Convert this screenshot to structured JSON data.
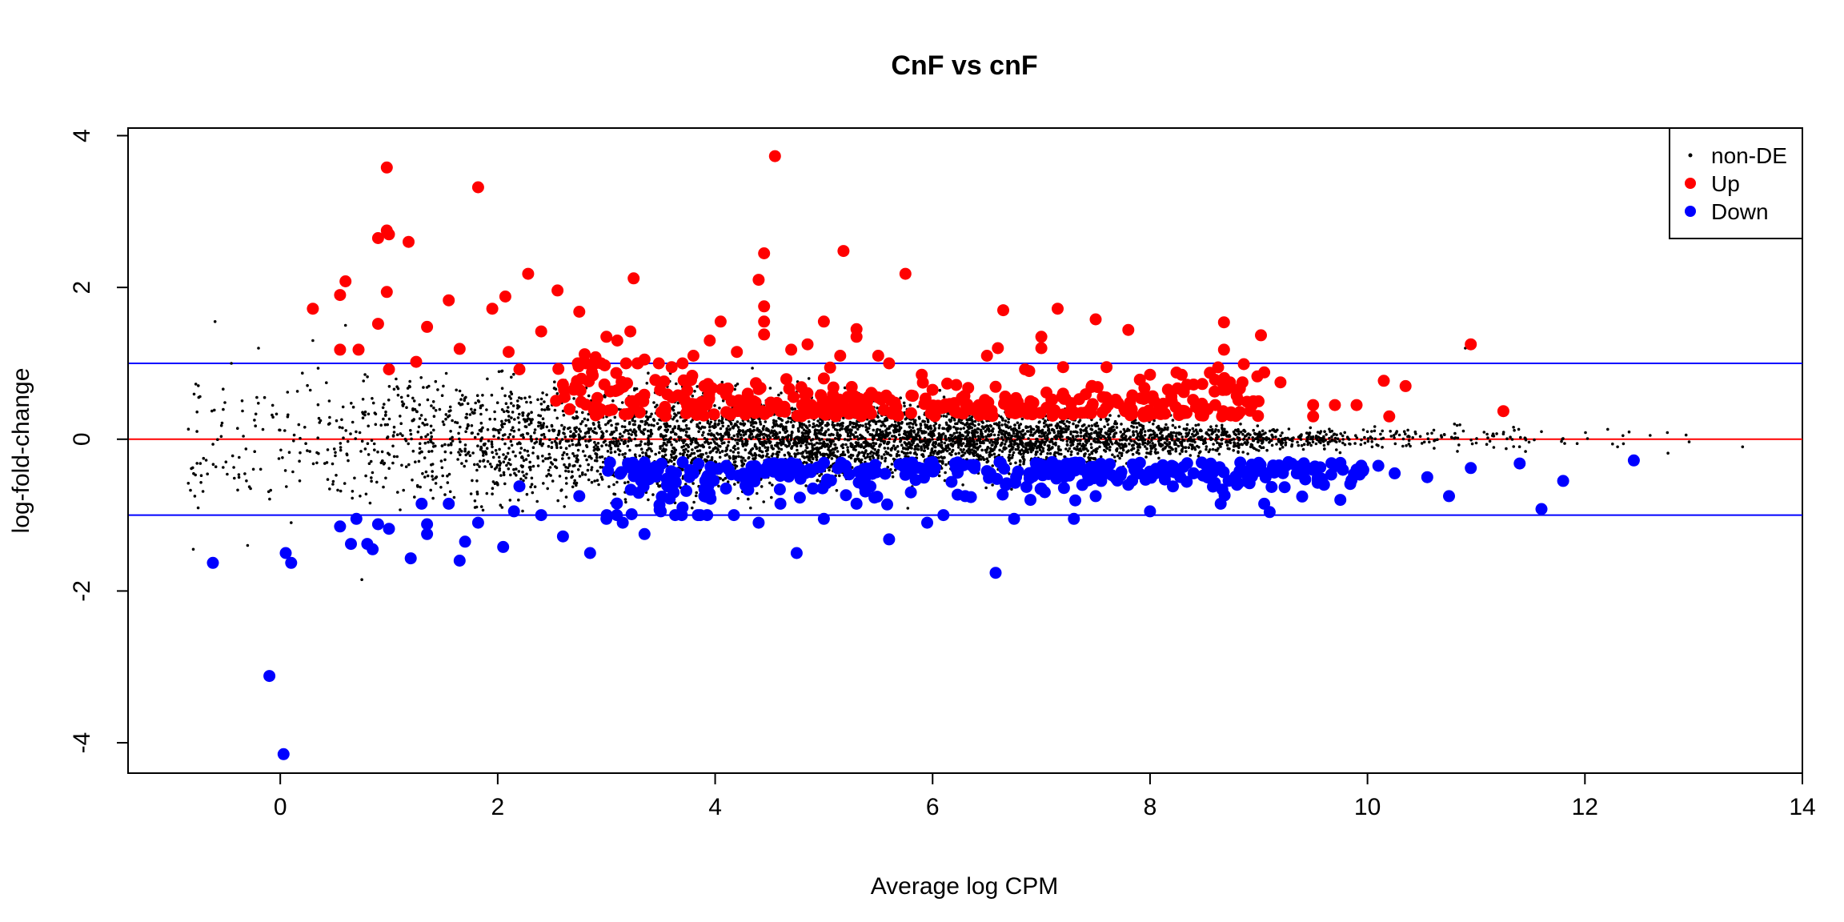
{
  "chart_data": {
    "type": "scatter",
    "title": "CnF vs cnF",
    "xlabel": "Average log CPM",
    "ylabel": "log-fold-change",
    "xlim": [
      -1.4,
      14.0
    ],
    "ylim": [
      -4.4,
      4.1
    ],
    "x_ticks": [
      0,
      2,
      4,
      6,
      8,
      10,
      12,
      14
    ],
    "y_ticks": [
      -4,
      -2,
      0,
      2,
      4
    ],
    "grid": false,
    "legend_position": "top-right",
    "reference_lines": [
      {
        "axis": "y",
        "value": 0,
        "color": "#ff0000"
      },
      {
        "axis": "y",
        "value": 1,
        "color": "#0000ff"
      },
      {
        "axis": "y",
        "value": -1,
        "color": "#0000ff"
      }
    ],
    "series": [
      {
        "name": "non-DE",
        "color": "#000000",
        "marker": "small-dot",
        "n_points": 5200,
        "points": [
          [
            -0.75,
            0.55
          ],
          [
            -0.6,
            1.55
          ],
          [
            -0.45,
            1.0
          ],
          [
            -0.2,
            1.2
          ],
          [
            -0.8,
            -1.45
          ],
          [
            -0.3,
            -1.4
          ],
          [
            0.1,
            -1.1
          ],
          [
            0.75,
            -1.85
          ],
          [
            1.2,
            2.6
          ],
          [
            0.6,
            1.5
          ],
          [
            0.3,
            1.3
          ],
          [
            10.9,
            1.2
          ],
          [
            12.6,
            0.05
          ],
          [
            13.45,
            -0.1
          ],
          [
            12.3,
            -0.1
          ],
          [
            11.6,
            0.1
          ],
          [
            10.8,
            0.2
          ],
          [
            2.0,
            -0.6
          ],
          [
            3.0,
            -0.35
          ],
          [
            1.5,
            0.7
          ],
          [
            2.5,
            0.45
          ],
          [
            4.0,
            0.25
          ],
          [
            5.0,
            -0.2
          ],
          [
            6.0,
            0.1
          ],
          [
            7.0,
            -0.1
          ],
          [
            8.0,
            0.05
          ],
          [
            9.0,
            -0.15
          ],
          [
            10.0,
            0.1
          ],
          [
            11.0,
            -0.05
          ],
          [
            -0.5,
            -0.3
          ]
        ]
      },
      {
        "name": "Up",
        "color": "#ff0000",
        "marker": "filled-circle",
        "points": [
          [
            0.3,
            1.72
          ],
          [
            0.55,
            1.9
          ],
          [
            0.6,
            2.08
          ],
          [
            0.55,
            1.18
          ],
          [
            0.72,
            1.18
          ],
          [
            0.9,
            2.65
          ],
          [
            0.98,
            2.75
          ],
          [
            1.0,
            2.7
          ],
          [
            0.98,
            3.58
          ],
          [
            1.18,
            2.6
          ],
          [
            0.9,
            1.52
          ],
          [
            0.98,
            1.94
          ],
          [
            1.0,
            0.92
          ],
          [
            1.25,
            1.02
          ],
          [
            1.35,
            1.48
          ],
          [
            1.55,
            1.83
          ],
          [
            1.65,
            1.19
          ],
          [
            1.82,
            3.32
          ],
          [
            1.95,
            1.72
          ],
          [
            2.07,
            1.88
          ],
          [
            2.2,
            0.92
          ],
          [
            2.28,
            2.18
          ],
          [
            2.1,
            1.15
          ],
          [
            2.4,
            1.42
          ],
          [
            2.55,
            1.96
          ],
          [
            2.6,
            0.72
          ],
          [
            2.75,
            1.68
          ],
          [
            2.8,
            1.12
          ],
          [
            2.9,
            1.08
          ],
          [
            3.0,
            1.35
          ],
          [
            3.1,
            1.3
          ],
          [
            3.22,
            1.42
          ],
          [
            3.25,
            2.12
          ],
          [
            3.35,
            1.05
          ],
          [
            3.45,
            0.78
          ],
          [
            3.6,
            0.95
          ],
          [
            3.7,
            1.0
          ],
          [
            3.8,
            1.1
          ],
          [
            3.95,
            1.3
          ],
          [
            4.05,
            1.55
          ],
          [
            4.2,
            1.15
          ],
          [
            4.4,
            2.1
          ],
          [
            4.45,
            2.45
          ],
          [
            4.45,
            1.75
          ],
          [
            4.45,
            1.55
          ],
          [
            4.45,
            1.38
          ],
          [
            4.55,
            3.73
          ],
          [
            4.7,
            1.18
          ],
          [
            4.85,
            1.25
          ],
          [
            5.0,
            1.55
          ],
          [
            5.15,
            1.1
          ],
          [
            5.18,
            2.48
          ],
          [
            5.3,
            1.45
          ],
          [
            5.3,
            1.35
          ],
          [
            5.5,
            1.1
          ],
          [
            5.6,
            1.0
          ],
          [
            5.75,
            2.18
          ],
          [
            5.9,
            0.85
          ],
          [
            6.5,
            1.1
          ],
          [
            6.6,
            1.2
          ],
          [
            6.65,
            1.7
          ],
          [
            6.85,
            0.92
          ],
          [
            7.0,
            1.35
          ],
          [
            7.0,
            1.2
          ],
          [
            7.15,
            1.72
          ],
          [
            7.2,
            0.95
          ],
          [
            7.5,
            1.58
          ],
          [
            7.6,
            0.95
          ],
          [
            7.8,
            1.44
          ],
          [
            8.0,
            0.85
          ],
          [
            8.2,
            0.5
          ],
          [
            8.4,
            0.72
          ],
          [
            8.6,
            0.45
          ],
          [
            8.68,
            1.54
          ],
          [
            8.68,
            1.18
          ],
          [
            8.7,
            0.65
          ],
          [
            8.85,
            0.75
          ],
          [
            8.95,
            0.5
          ],
          [
            9.02,
            1.37
          ],
          [
            9.05,
            0.88
          ],
          [
            9.2,
            0.75
          ],
          [
            9.5,
            0.3
          ],
          [
            9.5,
            0.45
          ],
          [
            9.7,
            0.45
          ],
          [
            9.9,
            0.45
          ],
          [
            10.15,
            0.77
          ],
          [
            10.2,
            0.3
          ],
          [
            10.35,
            0.7
          ],
          [
            10.95,
            1.25
          ],
          [
            11.25,
            0.37
          ],
          [
            4.3,
            0.6
          ],
          [
            4.8,
            0.45
          ],
          [
            5.5,
            0.55
          ],
          [
            6.2,
            0.4
          ],
          [
            6.9,
            0.5
          ],
          [
            7.4,
            0.35
          ],
          [
            3.9,
            0.7
          ],
          [
            5.0,
            0.8
          ],
          [
            6.0,
            0.65
          ],
          [
            7.2,
            0.6
          ]
        ]
      },
      {
        "name": "Down",
        "color": "#0000ff",
        "marker": "filled-circle",
        "points": [
          [
            -0.62,
            -1.63
          ],
          [
            0.05,
            -1.5
          ],
          [
            0.1,
            -1.63
          ],
          [
            -0.1,
            -3.12
          ],
          [
            0.03,
            -4.15
          ],
          [
            0.55,
            -1.15
          ],
          [
            0.65,
            -1.38
          ],
          [
            0.7,
            -1.05
          ],
          [
            0.8,
            -1.38
          ],
          [
            0.85,
            -1.45
          ],
          [
            0.9,
            -1.12
          ],
          [
            1.0,
            -1.18
          ],
          [
            1.2,
            -1.57
          ],
          [
            1.3,
            -0.85
          ],
          [
            1.35,
            -1.12
          ],
          [
            1.35,
            -1.25
          ],
          [
            1.55,
            -0.85
          ],
          [
            1.65,
            -1.6
          ],
          [
            1.7,
            -1.35
          ],
          [
            1.82,
            -1.1
          ],
          [
            2.05,
            -1.42
          ],
          [
            2.15,
            -0.95
          ],
          [
            2.2,
            -0.62
          ],
          [
            2.4,
            -1.0
          ],
          [
            2.6,
            -1.28
          ],
          [
            2.75,
            -0.75
          ],
          [
            2.85,
            -1.5
          ],
          [
            3.0,
            -1.05
          ],
          [
            3.15,
            -1.1
          ],
          [
            3.35,
            -1.25
          ],
          [
            3.5,
            -0.95
          ],
          [
            3.7,
            -0.9
          ],
          [
            3.9,
            -0.75
          ],
          [
            4.1,
            -0.65
          ],
          [
            4.4,
            -1.1
          ],
          [
            4.6,
            -0.85
          ],
          [
            4.75,
            -1.5
          ],
          [
            4.9,
            -0.65
          ],
          [
            5.0,
            -1.05
          ],
          [
            5.3,
            -0.85
          ],
          [
            5.6,
            -1.32
          ],
          [
            5.8,
            -0.7
          ],
          [
            5.95,
            -1.1
          ],
          [
            6.1,
            -1.0
          ],
          [
            6.3,
            -0.75
          ],
          [
            6.58,
            -1.76
          ],
          [
            6.75,
            -1.05
          ],
          [
            6.9,
            -0.8
          ],
          [
            7.0,
            -0.65
          ],
          [
            7.3,
            -1.05
          ],
          [
            7.5,
            -0.75
          ],
          [
            7.8,
            -0.6
          ],
          [
            8.0,
            -0.95
          ],
          [
            8.4,
            -0.45
          ],
          [
            8.65,
            -0.85
          ],
          [
            8.8,
            -0.6
          ],
          [
            9.05,
            -0.85
          ],
          [
            9.1,
            -0.96
          ],
          [
            9.35,
            -0.45
          ],
          [
            9.6,
            -0.6
          ],
          [
            9.75,
            -0.8
          ],
          [
            9.9,
            -0.4
          ],
          [
            10.1,
            -0.35
          ],
          [
            10.25,
            -0.45
          ],
          [
            10.55,
            -0.5
          ],
          [
            10.75,
            -0.75
          ],
          [
            10.95,
            -0.38
          ],
          [
            11.4,
            -0.32
          ],
          [
            11.6,
            -0.92
          ],
          [
            11.8,
            -0.55
          ],
          [
            12.45,
            -0.28
          ],
          [
            3.8,
            -0.45
          ],
          [
            4.5,
            -0.4
          ],
          [
            5.2,
            -0.35
          ],
          [
            6.0,
            -0.3
          ],
          [
            6.5,
            -0.42
          ],
          [
            7.1,
            -0.3
          ],
          [
            7.6,
            -0.38
          ],
          [
            8.2,
            -0.35
          ],
          [
            8.9,
            -0.42
          ]
        ]
      }
    ]
  }
}
